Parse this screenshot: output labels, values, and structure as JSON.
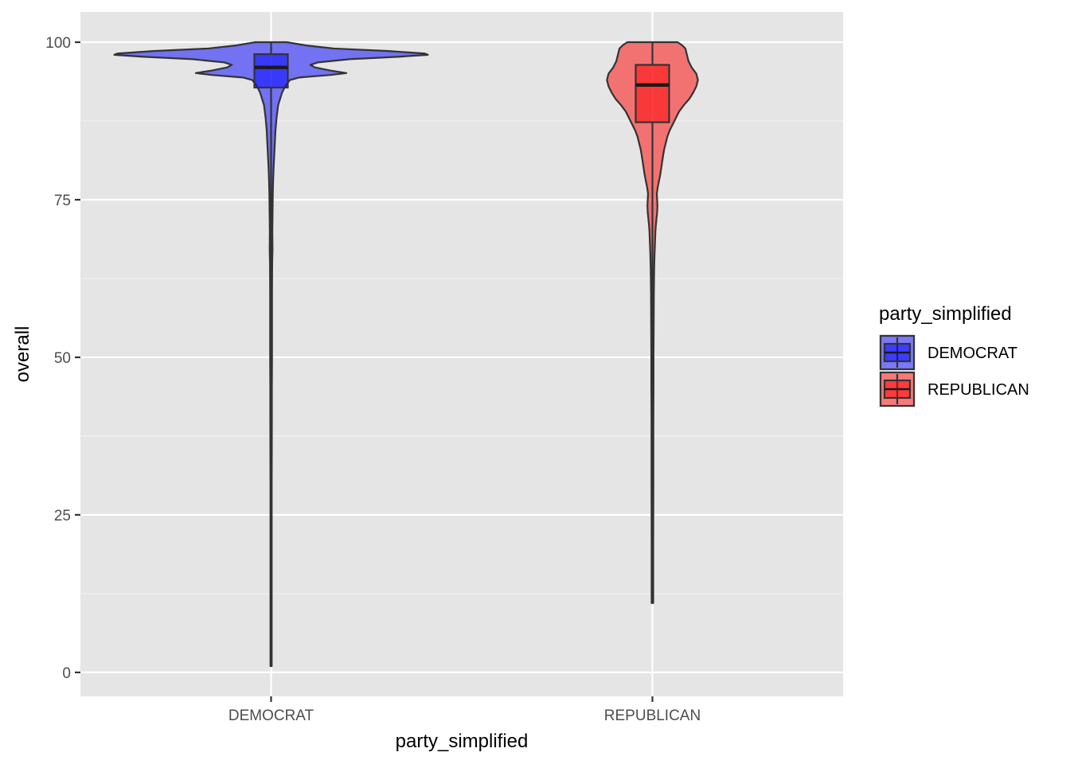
{
  "chart_data": {
    "type": "violin",
    "xlabel": "party_simplified",
    "ylabel": "overall",
    "categories": [
      "DEMOCRAT",
      "REPUBLICAN"
    ],
    "y_ticks": [
      0,
      25,
      50,
      75,
      100
    ],
    "ylim": [
      -3.8,
      104.8
    ],
    "grid": true,
    "legend": {
      "title": "party_simplified",
      "position": "right",
      "entries": [
        "DEMOCRAT",
        "REPUBLICAN"
      ]
    },
    "series": [
      {
        "name": "DEMOCRAT",
        "fill_color": "#0000ff",
        "box": {
          "min": 1,
          "q1": 92.8,
          "median": 96.0,
          "q3": 98.1,
          "max": 100
        },
        "density_profile": [
          [
            100,
            0.1
          ],
          [
            99.5,
            0.22
          ],
          [
            99,
            0.4
          ],
          [
            98.6,
            0.75
          ],
          [
            98.2,
            0.98
          ],
          [
            98.0,
            1.0
          ],
          [
            97.7,
            0.82
          ],
          [
            97.3,
            0.5
          ],
          [
            96.8,
            0.3
          ],
          [
            96.4,
            0.25
          ],
          [
            96.0,
            0.28
          ],
          [
            95.5,
            0.38
          ],
          [
            95.1,
            0.48
          ],
          [
            94.8,
            0.38
          ],
          [
            94.4,
            0.18
          ],
          [
            94.0,
            0.12
          ],
          [
            93.0,
            0.09
          ],
          [
            92.0,
            0.07
          ],
          [
            90.0,
            0.045
          ],
          [
            88.0,
            0.035
          ],
          [
            86.0,
            0.028
          ],
          [
            84.0,
            0.024
          ],
          [
            82.0,
            0.02
          ],
          [
            80.0,
            0.016
          ],
          [
            78.0,
            0.013
          ],
          [
            76.0,
            0.011
          ],
          [
            74.0,
            0.01
          ],
          [
            70.0,
            0.008
          ],
          [
            67.0,
            0.009
          ],
          [
            65.0,
            0.007
          ],
          [
            60.0,
            0.006
          ],
          [
            55.0,
            0.006
          ],
          [
            50.0,
            0.006
          ],
          [
            45.0,
            0.005
          ],
          [
            40.0,
            0.005
          ],
          [
            30.0,
            0.004
          ],
          [
            20.0,
            0.004
          ],
          [
            10.0,
            0.004
          ],
          [
            1.0,
            0.004
          ]
        ]
      },
      {
        "name": "REPUBLICAN",
        "fill_color": "#ff0000",
        "box": {
          "min": 11,
          "q1": 87.3,
          "median": 93.2,
          "q3": 96.4,
          "max": 100
        },
        "density_profile": [
          [
            100,
            0.16
          ],
          [
            99.5,
            0.19
          ],
          [
            99,
            0.21
          ],
          [
            98.0,
            0.22
          ],
          [
            97.0,
            0.23
          ],
          [
            96.0,
            0.25
          ],
          [
            95.0,
            0.28
          ],
          [
            94.0,
            0.29
          ],
          [
            93.0,
            0.28
          ],
          [
            92.0,
            0.26
          ],
          [
            91.0,
            0.235
          ],
          [
            90.0,
            0.2
          ],
          [
            89.0,
            0.17
          ],
          [
            88.0,
            0.15
          ],
          [
            87.0,
            0.13
          ],
          [
            86.0,
            0.11
          ],
          [
            85.0,
            0.095
          ],
          [
            84.0,
            0.085
          ],
          [
            83.0,
            0.075
          ],
          [
            82.0,
            0.068
          ],
          [
            81.0,
            0.062
          ],
          [
            80.0,
            0.056
          ],
          [
            79.0,
            0.05
          ],
          [
            78.0,
            0.042
          ],
          [
            77.0,
            0.034
          ],
          [
            76.0,
            0.028
          ],
          [
            75.0,
            0.03
          ],
          [
            74.0,
            0.032
          ],
          [
            73.0,
            0.03
          ],
          [
            72.0,
            0.026
          ],
          [
            71.0,
            0.022
          ],
          [
            70.0,
            0.019
          ],
          [
            68.0,
            0.016
          ],
          [
            66.0,
            0.013
          ],
          [
            64.0,
            0.011
          ],
          [
            62.0,
            0.01
          ],
          [
            60.0,
            0.009
          ],
          [
            55.0,
            0.008
          ],
          [
            50.0,
            0.007
          ],
          [
            45.0,
            0.007
          ],
          [
            40.0,
            0.006
          ],
          [
            30.0,
            0.006
          ],
          [
            20.0,
            0.005
          ],
          [
            11.0,
            0.005
          ]
        ]
      }
    ]
  }
}
